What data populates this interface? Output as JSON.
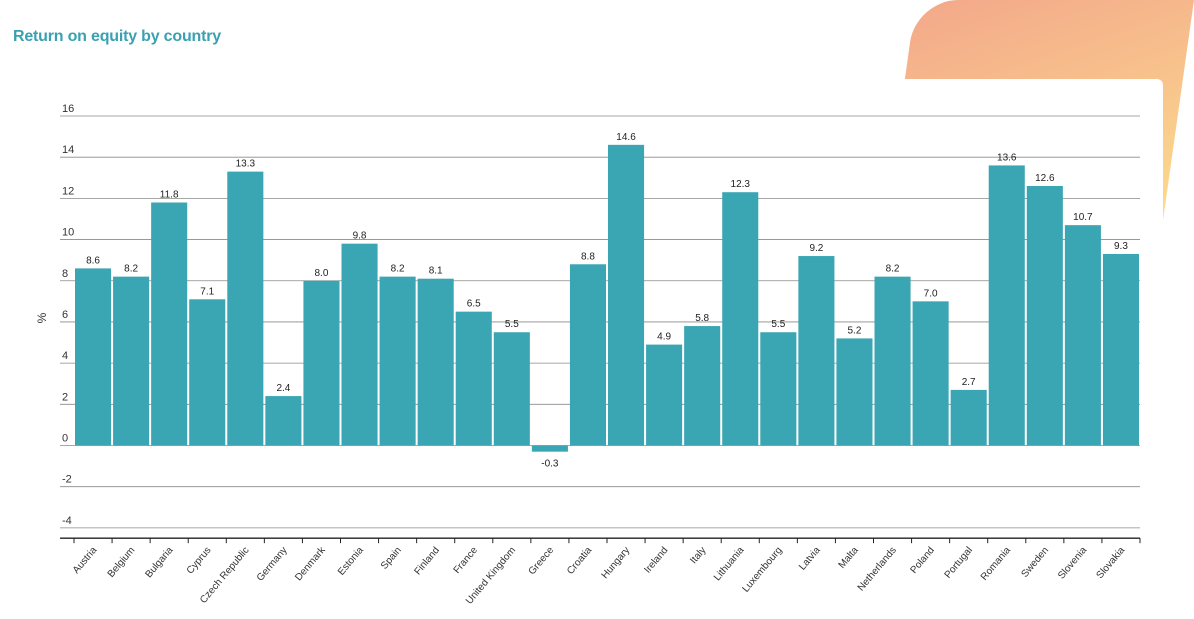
{
  "title": "Return on equity by country",
  "colors": {
    "bar": "#3ba6b3",
    "title": "#3aa1b2",
    "grid": "#8a8a8a"
  },
  "chart_data": {
    "type": "bar",
    "title": "Return on equity by country",
    "xlabel": "",
    "ylabel": "%",
    "ylim": [
      -4.5,
      16
    ],
    "yticks": [
      16,
      14,
      12,
      10,
      8,
      6,
      4,
      2,
      0,
      -2,
      -4
    ],
    "grid": true,
    "categories": [
      "Austria",
      "Belgium",
      "Bulgaria",
      "Cyprus",
      "Czech Republic",
      "Germany",
      "Denmark",
      "Estonia",
      "Spain",
      "Finland",
      "France",
      "United Kingdom",
      "Greece",
      "Croatia",
      "Hungary",
      "Ireland",
      "Italy",
      "Lithuania",
      "Luxembourg",
      "Latvia",
      "Malta",
      "Netherlands",
      "Poland",
      "Portugal",
      "Romania",
      "Sweden",
      "Slovenia",
      "Slovakia"
    ],
    "values": [
      8.6,
      8.2,
      11.8,
      7.1,
      13.3,
      2.4,
      8.0,
      9.8,
      8.2,
      8.1,
      6.5,
      5.5,
      -0.3,
      8.8,
      14.6,
      4.9,
      5.8,
      12.3,
      5.5,
      9.2,
      5.2,
      8.2,
      7.0,
      2.7,
      13.6,
      12.6,
      10.7,
      9.3
    ],
    "labels": [
      "8.6",
      "8.2",
      "11.8",
      "7.1",
      "13.3",
      "2.4",
      "8.0",
      "9.8",
      "8.2",
      "8.1",
      "6.5",
      "5.5",
      "-0.3",
      "8.8",
      "14.6",
      "4.9",
      "5.8",
      "12.3",
      "5.5",
      "9.2",
      "5.2",
      "8.2",
      "7.0",
      "2.7",
      "13.6",
      "12.6",
      "10.7",
      "9.3"
    ]
  }
}
